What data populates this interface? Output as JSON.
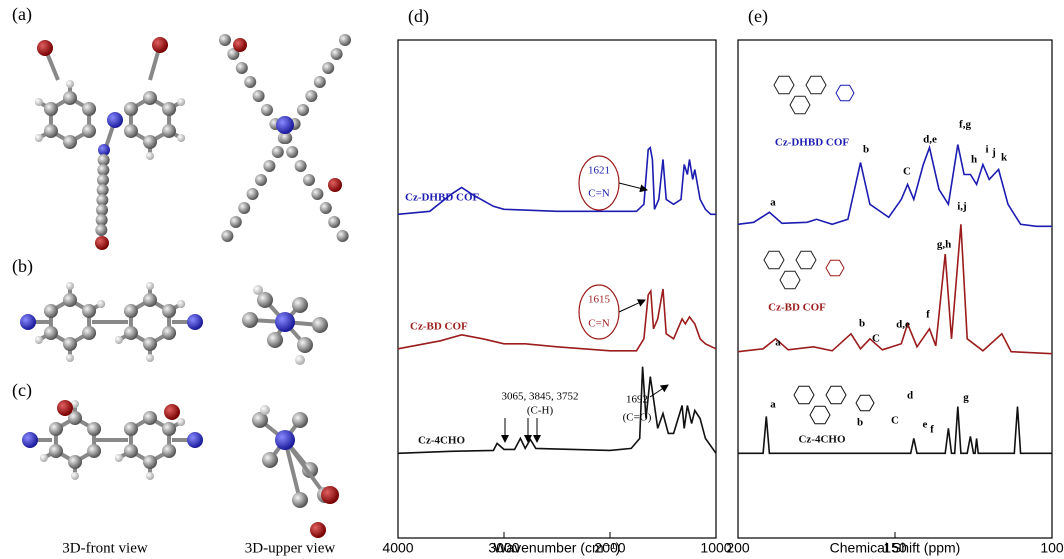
{
  "molecule_panels": {
    "labels": [
      "(a)",
      "(b)",
      "(c)"
    ],
    "captions": [
      "3D-front view",
      "3D-upper  view"
    ]
  },
  "chart_data": [
    {
      "type": "line",
      "panel_label": "(d)",
      "x_label": "Wavenumber (cm⁻¹)",
      "xlim": [
        4000,
        1000
      ],
      "xticks": [
        4000,
        3000,
        2000,
        1000
      ],
      "ylim": [
        0,
        100
      ],
      "series": [
        {
          "name": "Cz-DHBD COF",
          "color": "#1c1cb0",
          "x": [
            4000,
            3700,
            3500,
            3400,
            3300,
            3100,
            3000,
            2500,
            2000,
            1750,
            1680,
            1640,
            1621,
            1600,
            1580,
            1540,
            1500,
            1470,
            1400,
            1330,
            1300,
            1270,
            1250,
            1220,
            1200,
            1150,
            1100,
            1050,
            1000
          ],
          "values": [
            65,
            65.6,
            69,
            70.4,
            69,
            66.6,
            66,
            65.6,
            65.6,
            65.6,
            67,
            78,
            78.4,
            76,
            66,
            68,
            76,
            68,
            67,
            68,
            75,
            73,
            76,
            72,
            74,
            68,
            66,
            65,
            65
          ]
        },
        {
          "name": "Cz-BD COF",
          "color": "#9b1c1c",
          "x": [
            4000,
            3600,
            3400,
            3200,
            3000,
            2800,
            2500,
            2000,
            1750,
            1680,
            1640,
            1615,
            1590,
            1550,
            1500,
            1470,
            1400,
            1320,
            1290,
            1250,
            1200,
            1150,
            1100,
            1000
          ],
          "values": [
            38,
            39.6,
            40.8,
            40,
            39,
            39,
            38.4,
            37.6,
            37.6,
            40,
            48.8,
            49.6,
            42,
            44,
            50,
            41,
            40,
            44,
            43,
            44.4,
            43,
            40,
            39,
            38
          ]
        },
        {
          "name": "Cz-4CHO",
          "color": "#111111",
          "x": [
            4000,
            3500,
            3100,
            3065,
            3000,
            2900,
            2845,
            2800,
            2752,
            2700,
            2000,
            1800,
            1720,
            1692,
            1660,
            1620,
            1590,
            1550,
            1500,
            1450,
            1400,
            1320,
            1300,
            1270,
            1230,
            1200,
            1150,
            1100,
            1000
          ],
          "values": [
            17,
            17.4,
            17.6,
            19,
            17.8,
            17.8,
            20,
            18,
            19.8,
            18,
            17.6,
            18,
            20,
            34.4,
            24,
            32.4,
            28,
            22,
            25,
            21,
            21,
            26.6,
            22,
            26.6,
            23,
            25.6,
            24,
            20,
            17
          ]
        }
      ],
      "annotations": [
        "1621",
        "C=N",
        "1615",
        "C=N",
        "3065, 3845, 3752",
        "(C-H)",
        "1692",
        "(C=O)"
      ]
    },
    {
      "type": "line",
      "panel_label": "(e)",
      "x_label": "Chemical Shift (ppm)",
      "xlim": [
        200,
        100
      ],
      "xticks": [
        200,
        150,
        100
      ],
      "ylim": [
        0,
        100
      ],
      "series": [
        {
          "name": "Cz-DHBD COF",
          "color": "#1c1cb0",
          "x": [
            200,
            195,
            190,
            186,
            178,
            175,
            170,
            165,
            161,
            158,
            152,
            148,
            146,
            144,
            141,
            139,
            136,
            133,
            130,
            128,
            126,
            124,
            122,
            120,
            117,
            114,
            110,
            105,
            100
          ],
          "values": [
            63,
            63.4,
            65.4,
            63.2,
            63.4,
            64,
            63,
            64,
            75.4,
            67,
            64.4,
            68,
            71,
            68,
            75,
            78.4,
            70,
            67,
            79,
            73,
            73,
            71,
            75,
            72,
            74,
            67,
            63,
            62.6,
            62.6
          ]
        },
        {
          "name": "Cz-BD COF",
          "color": "#9b1c1c",
          "x": [
            200,
            192,
            188,
            184,
            176,
            170,
            164,
            161,
            158,
            154,
            148,
            146,
            143,
            139,
            137,
            134,
            132,
            129,
            127,
            122,
            116,
            113,
            100
          ],
          "values": [
            37.4,
            38,
            40,
            37.8,
            38.4,
            37.6,
            41,
            38,
            40,
            37.8,
            39,
            43,
            38.4,
            42,
            38.6,
            57,
            40,
            63,
            40,
            37.6,
            41,
            37.4,
            37
          ]
        },
        {
          "name": "Cz-4CHO",
          "color": "#111111",
          "x": [
            200,
            192,
            191,
            190,
            145,
            144,
            143,
            134,
            133,
            132,
            131,
            130,
            129,
            127,
            126,
            125,
            124.5,
            124,
            123.5,
            112,
            111,
            110,
            100
          ],
          "values": [
            17,
            17,
            24.4,
            17,
            17,
            20,
            17,
            17,
            22,
            17,
            17,
            26.4,
            17,
            17,
            20.4,
            17,
            17,
            20,
            17,
            17,
            26.4,
            17,
            17
          ]
        }
      ],
      "annotations": [
        "a",
        "b",
        "C",
        "d,e",
        "f,g",
        "h",
        "i",
        "j",
        "k",
        "a",
        "b",
        "C",
        "d,e",
        "f",
        "g,h",
        "i,j",
        "a",
        "b",
        "C",
        "d",
        "e",
        "f",
        "g"
      ]
    }
  ]
}
